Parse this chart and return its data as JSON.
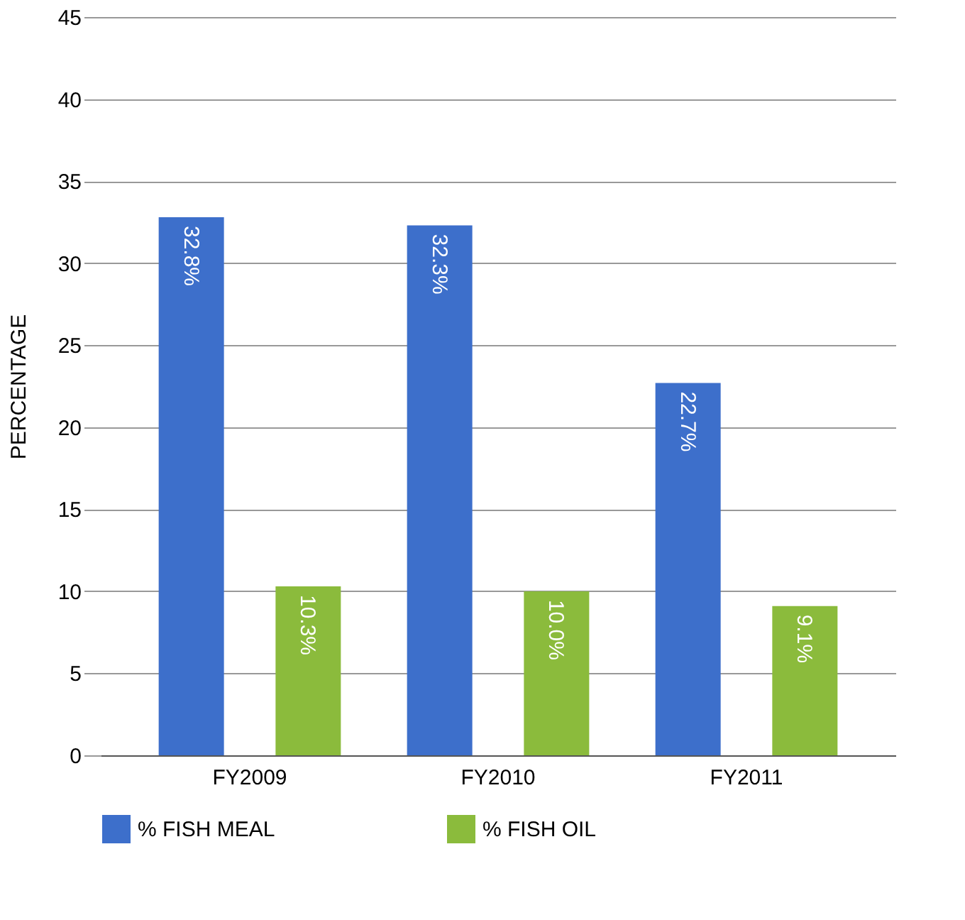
{
  "chart_data": {
    "type": "bar",
    "ylabel": "PERCENTAGE",
    "categories": [
      "FY2009",
      "FY2010",
      "FY2011"
    ],
    "series": [
      {
        "name": "% FISH MEAL",
        "color": "#3d6fcb",
        "values": [
          32.8,
          32.3,
          22.7
        ],
        "value_labels": [
          "32.8%",
          "32.3%",
          "22.7%"
        ]
      },
      {
        "name": "% FISH OIL",
        "color": "#8bbb3c",
        "values": [
          10.3,
          10.0,
          9.1
        ],
        "value_labels": [
          "10.3%",
          "10.0%",
          "9.1%"
        ]
      }
    ],
    "ylim": [
      0,
      45
    ],
    "yticks": [
      0,
      5,
      10,
      15,
      20,
      25,
      30,
      35,
      40,
      45
    ],
    "grid": "y",
    "legend": "bottom"
  }
}
